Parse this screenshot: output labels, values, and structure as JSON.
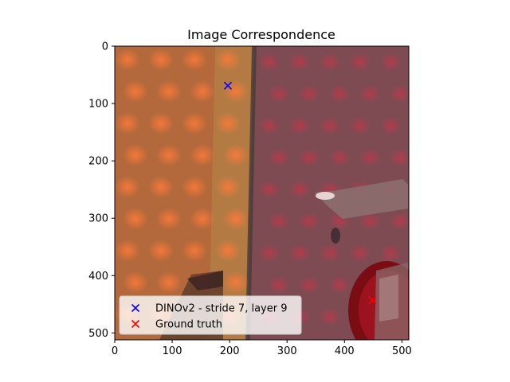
{
  "chart_data": {
    "type": "scatter",
    "title": "Image Correspondence",
    "xlabel": "",
    "ylabel": "",
    "xlim": [
      0,
      512
    ],
    "ylim": [
      512,
      0
    ],
    "xticks": [
      0,
      100,
      200,
      300,
      400,
      500
    ],
    "yticks": [
      0,
      100,
      200,
      300,
      400,
      500
    ],
    "background": "photographic image (left half: orange patterned fabric, right half: dark red/gray patterned surface)",
    "series": [
      {
        "name": "DINOv2 - stride 7, layer 9",
        "marker": "x",
        "color": "#0000ff",
        "points": [
          [
            197,
            69
          ]
        ]
      },
      {
        "name": "Ground truth",
        "marker": "x",
        "color": "#ff0000",
        "points": [
          [
            449,
            443
          ]
        ]
      }
    ],
    "legend": "lower-left"
  }
}
